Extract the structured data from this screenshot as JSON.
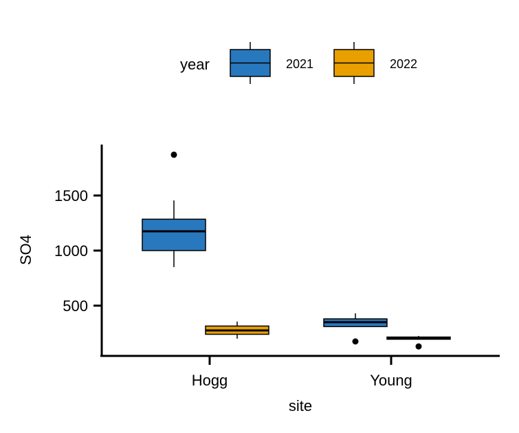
{
  "chart_data": {
    "type": "boxplot",
    "xlabel": "site",
    "ylabel": "SO4",
    "categories": [
      "Hogg",
      "Young"
    ],
    "yticks": [
      500,
      1000,
      1500
    ],
    "ylim": [
      100,
      2000
    ],
    "legend": {
      "title": "year",
      "position": "top",
      "items": [
        {
          "label": "2021",
          "color": "#2878BE"
        },
        {
          "label": "2022",
          "color": "#E8A000"
        }
      ]
    },
    "series": [
      {
        "name": "2021",
        "color": "#2878BE",
        "boxes": [
          {
            "category": "Hogg",
            "min": 850,
            "q1": 1000,
            "median": 1175,
            "q3": 1285,
            "max": 1455,
            "outliers": [
              1870
            ]
          },
          {
            "category": "Young",
            "min": 310,
            "q1": 310,
            "median": 350,
            "q3": 380,
            "max": 430,
            "outliers": [
              175
            ]
          }
        ]
      },
      {
        "name": "2022",
        "color": "#E8A000",
        "boxes": [
          {
            "category": "Hogg",
            "min": 200,
            "q1": 240,
            "median": 275,
            "q3": 315,
            "max": 355,
            "outliers": []
          },
          {
            "category": "Young",
            "min": 190,
            "q1": 195,
            "median": 205,
            "q3": 215,
            "max": 225,
            "outliers": [
              130
            ]
          }
        ]
      }
    ]
  }
}
